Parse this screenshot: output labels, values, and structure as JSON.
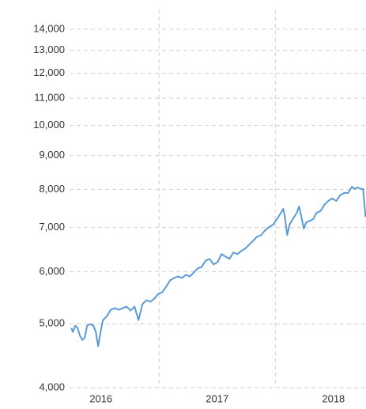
{
  "chart_data": {
    "type": "line",
    "log_y": true,
    "grid": true,
    "xlim": [
      2016.23,
      2018.78
    ],
    "ylim": [
      4000,
      15000
    ],
    "xticks": [
      {
        "value": 2016.5,
        "label": "2016"
      },
      {
        "value": 2017.5,
        "label": "2017"
      },
      {
        "value": 2018.5,
        "label": "2018"
      }
    ],
    "xgrid": [
      2017,
      2018
    ],
    "yticks": [
      {
        "value": 4000,
        "label": "4,000"
      },
      {
        "value": 5000,
        "label": "5,000"
      },
      {
        "value": 6000,
        "label": "6,000"
      },
      {
        "value": 7000,
        "label": "7,000"
      },
      {
        "value": 8000,
        "label": "8,000"
      },
      {
        "value": 9000,
        "label": "9,000"
      },
      {
        "value": 10000,
        "label": "10,000"
      },
      {
        "value": 11000,
        "label": "11,000"
      },
      {
        "value": 12000,
        "label": "12,000"
      },
      {
        "value": 13000,
        "label": "13,000"
      },
      {
        "value": 14000,
        "label": "14,000"
      }
    ],
    "x": [
      2016.245,
      2016.259,
      2016.279,
      2016.299,
      2016.32,
      2016.34,
      2016.361,
      2016.381,
      2016.408,
      2016.435,
      2016.456,
      2016.476,
      2016.497,
      2016.517,
      2016.551,
      2016.585,
      2016.619,
      2016.653,
      2016.687,
      2016.721,
      2016.755,
      2016.789,
      2016.823,
      2016.857,
      2016.891,
      2016.925,
      2016.959,
      2016.993,
      2017.027,
      2017.061,
      2017.095,
      2017.129,
      2017.163,
      2017.197,
      2017.231,
      2017.265,
      2017.299,
      2017.333,
      2017.367,
      2017.401,
      2017.435,
      2017.469,
      2017.503,
      2017.537,
      2017.571,
      2017.605,
      2017.639,
      2017.673,
      2017.707,
      2017.741,
      2017.776,
      2017.81,
      2017.844,
      2017.878,
      2017.912,
      2017.946,
      2017.98,
      2018.014,
      2018.048,
      2018.068,
      2018.082,
      2018.102,
      2018.122,
      2018.15,
      2018.184,
      2018.204,
      2018.224,
      2018.245,
      2018.265,
      2018.299,
      2018.327,
      2018.354,
      2018.388,
      2018.422,
      2018.456,
      2018.49,
      2018.524,
      2018.558,
      2018.592,
      2018.626,
      2018.66,
      2018.68,
      2018.707,
      2018.735,
      2018.755,
      2018.776
    ],
    "series": [
      {
        "color": "#5b9bd5",
        "values": [
          4926,
          4859,
          4968,
          4926,
          4792,
          4725,
          4765,
          4968,
          4995,
          4968,
          4859,
          4622,
          4859,
          5065,
          5136,
          5252,
          5281,
          5252,
          5281,
          5310,
          5237,
          5310,
          5065,
          5355,
          5430,
          5400,
          5460,
          5552,
          5582,
          5692,
          5820,
          5869,
          5901,
          5869,
          5934,
          5901,
          5984,
          6068,
          6101,
          6238,
          6273,
          6152,
          6204,
          6379,
          6326,
          6273,
          6414,
          6379,
          6450,
          6504,
          6595,
          6687,
          6781,
          6818,
          6933,
          7011,
          7070,
          7209,
          7370,
          7473,
          7269,
          6818,
          7070,
          7209,
          7370,
          7536,
          7269,
          6972,
          7128,
          7168,
          7209,
          7370,
          7411,
          7578,
          7683,
          7748,
          7683,
          7834,
          7900,
          7900,
          8078,
          8010,
          8055,
          8010,
          8010,
          7269
        ]
      }
    ]
  }
}
